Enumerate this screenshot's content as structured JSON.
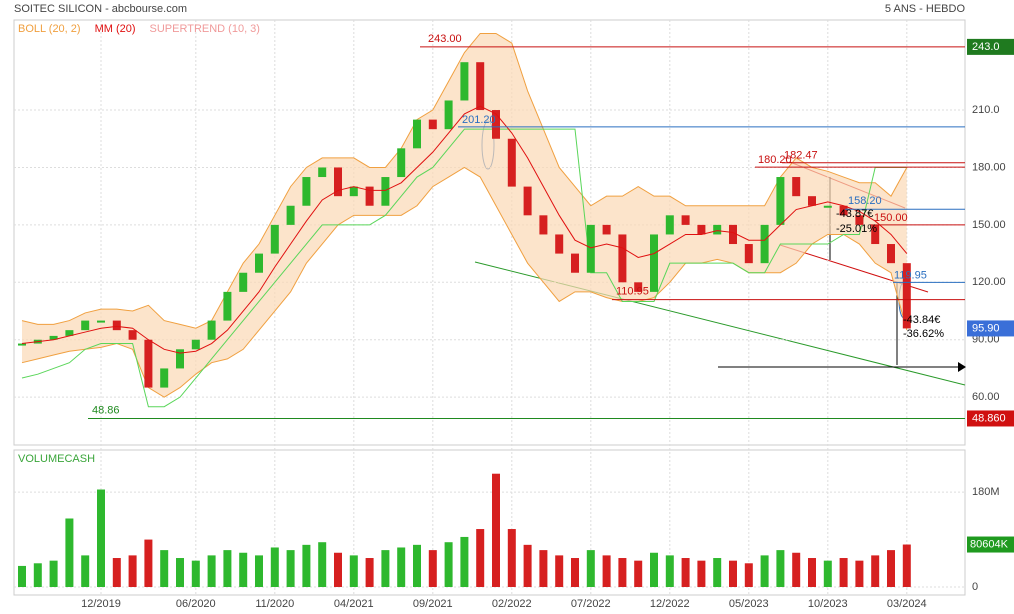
{
  "chart_data": [
    {
      "type": "candle",
      "title": "SOITEC SILICON - abcbourse.com",
      "subtitle": "5 ANS - HEBDO",
      "up_color": "#2eb82e",
      "down_color": "#d62020",
      "values": [
        88,
        90,
        92,
        95,
        100,
        100,
        95,
        90,
        65,
        75,
        85,
        90,
        100,
        115,
        125,
        135,
        150,
        160,
        175,
        180,
        165,
        170,
        160,
        175,
        190,
        205,
        200,
        215,
        235,
        210,
        195,
        170,
        155,
        145,
        135,
        125,
        150,
        145,
        120,
        115,
        145,
        155,
        150,
        145,
        150,
        140,
        130,
        150,
        175,
        165,
        160,
        160,
        155,
        150,
        140,
        130,
        95.9
      ],
      "last_value_label": "95.90",
      "series": [
        {
          "name": "BOLL (20, 2)",
          "color": "#f0a040",
          "upper": [
            100,
            98,
            98,
            100,
            104,
            106,
            106,
            105,
            108,
            100,
            98,
            96,
            100,
            115,
            130,
            140,
            155,
            170,
            180,
            185,
            185,
            185,
            180,
            180,
            190,
            205,
            210,
            225,
            240,
            250,
            250,
            245,
            220,
            200,
            180,
            170,
            160,
            165,
            165,
            170,
            165,
            165,
            160,
            160,
            160,
            160,
            160,
            160,
            175,
            185,
            180,
            178,
            175,
            172,
            172,
            165,
            180
          ],
          "lower": [
            78,
            80,
            82,
            84,
            85,
            86,
            88,
            85,
            65,
            60,
            65,
            72,
            78,
            80,
            85,
            95,
            105,
            115,
            130,
            140,
            150,
            155,
            155,
            155,
            155,
            160,
            170,
            175,
            180,
            175,
            160,
            145,
            130,
            120,
            110,
            115,
            115,
            112,
            110,
            110,
            112,
            120,
            130,
            130,
            132,
            130,
            125,
            125,
            125,
            130,
            140,
            145,
            145,
            140,
            130,
            125,
            95
          ]
        },
        {
          "name": "MM (20)",
          "color": "#e01010",
          "values": [
            88,
            89,
            90,
            92,
            94,
            96,
            97,
            96,
            90,
            85,
            83,
            84,
            88,
            95,
            105,
            115,
            128,
            140,
            152,
            163,
            168,
            170,
            168,
            168,
            172,
            180,
            188,
            198,
            208,
            212,
            208,
            198,
            185,
            170,
            155,
            142,
            138,
            140,
            138,
            133,
            135,
            140,
            145,
            145,
            147,
            146,
            142,
            142,
            150,
            158,
            160,
            162,
            160,
            157,
            152,
            145,
            135
          ]
        },
        {
          "name": "SUPERTREND (10, 3)",
          "color": "#f09a9a",
          "line_color": "#5ad65a",
          "values": [
            70,
            72,
            75,
            78,
            85,
            88,
            88,
            88,
            55,
            55,
            60,
            70,
            80,
            90,
            100,
            110,
            120,
            130,
            140,
            150,
            150,
            150,
            150,
            155,
            165,
            175,
            180,
            190,
            200,
            200,
            200,
            200,
            200,
            200,
            200,
            200,
            125,
            125,
            110,
            110,
            110,
            130,
            130,
            130,
            130,
            130,
            125,
            125,
            140,
            140,
            140,
            140,
            145,
            145,
            180,
            180,
            180
          ]
        }
      ],
      "levels": [
        {
          "value": 243,
          "label": "243.00",
          "axis_label": "243.0",
          "color": "#c81010",
          "box_color": "#1f7a1f"
        },
        {
          "value": 48.86,
          "label": "48.86",
          "axis_label": "48.860",
          "color": "#1f8a1f",
          "box_color": "#d01010"
        },
        {
          "value": 201.2,
          "label": "201.20",
          "color": "#2a6fc0"
        },
        {
          "value": 182.47,
          "label": "182.47",
          "color": "#c81010"
        },
        {
          "value": 180.2,
          "label": "180.20",
          "color": "#c81010"
        },
        {
          "value": 158.2,
          "label": "158.20",
          "color": "#2a6fc0"
        },
        {
          "value": 150,
          "label": "150.00",
          "color": "#c81010"
        },
        {
          "value": 119.95,
          "label": "119.95",
          "color": "#2a6fc0"
        },
        {
          "value": 110.95,
          "label": "110.95",
          "color": "#c81010"
        }
      ],
      "annotations": [
        "-43.87€",
        "-25.01%",
        "-43.84€",
        "-36.62%"
      ],
      "last_box_color": "#3a6fd8",
      "ylim": [
        35,
        256
      ],
      "yticks": [
        {
          "value": 60,
          "label": "60.00"
        },
        {
          "value": 90,
          "label": "90.00"
        },
        {
          "value": 120,
          "label": "120.00"
        },
        {
          "value": 150,
          "label": "150.00"
        },
        {
          "value": 180,
          "label": "180.00"
        },
        {
          "value": 210,
          "label": "210.0"
        }
      ],
      "grid": true
    },
    {
      "type": "bar",
      "title": "VOLUMECASH",
      "categories": [
        null,
        null,
        null,
        null,
        null,
        "12/2019",
        null,
        null,
        null,
        null,
        null,
        "06/2020",
        null,
        null,
        null,
        null,
        "11/2020",
        null,
        null,
        null,
        null,
        "04/2021",
        null,
        null,
        null,
        null,
        "09/2021",
        null,
        null,
        null,
        null,
        "02/2022",
        null,
        null,
        null,
        null,
        "07/2022",
        null,
        null,
        null,
        null,
        "12/2022",
        null,
        null,
        null,
        null,
        "05/2023",
        null,
        null,
        null,
        null,
        "10/2023",
        null,
        null,
        null,
        null,
        "03/2024"
      ],
      "values": [
        40000000,
        45000000,
        50000000,
        130000000,
        60000000,
        185000000,
        55000000,
        60000000,
        90000000,
        70000000,
        55000000,
        50000000,
        60000000,
        70000000,
        65000000,
        60000000,
        75000000,
        70000000,
        80000000,
        85000000,
        65000000,
        60000000,
        55000000,
        70000000,
        75000000,
        80000000,
        70000000,
        85000000,
        95000000,
        110000000,
        215000000,
        110000000,
        80000000,
        70000000,
        60000000,
        55000000,
        70000000,
        60000000,
        55000000,
        50000000,
        65000000,
        60000000,
        55000000,
        50000000,
        55000000,
        50000000,
        45000000,
        60000000,
        70000000,
        65000000,
        55000000,
        50000000,
        55000000,
        50000000,
        60000000,
        70000000,
        80604000
      ],
      "last_value_label": "80604K",
      "last_box_color": "#1f9a1f",
      "ylim": [
        0,
        260000000
      ],
      "yticks": [
        0,
        {
          "value": 180000000,
          "label": "180M"
        }
      ],
      "grid": true
    }
  ]
}
